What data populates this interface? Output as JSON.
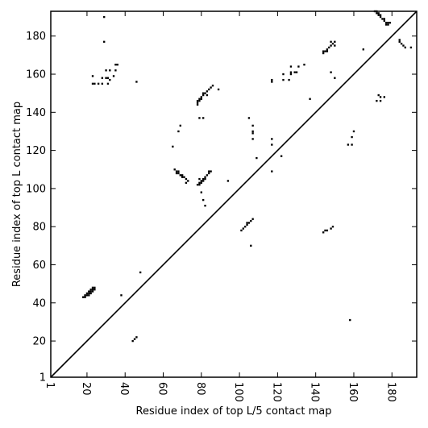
{
  "chart_data": {
    "type": "heatmap",
    "title": "",
    "xlabel": "Residue index of top L/5 contact map",
    "ylabel": "Residue index of top L contact map",
    "xlim": [
      1,
      193
    ],
    "ylim": [
      1,
      193
    ],
    "x_ticks": [
      1,
      20,
      40,
      60,
      80,
      100,
      120,
      140,
      160,
      180
    ],
    "y_ticks": [
      1,
      20,
      40,
      60,
      80,
      100,
      120,
      140,
      160,
      180
    ],
    "grid": false,
    "diagonal": true,
    "mark_color": "#000000",
    "points": [
      [
        18,
        43
      ],
      [
        19,
        43
      ],
      [
        19,
        44
      ],
      [
        20,
        44
      ],
      [
        21,
        44
      ],
      [
        21,
        45
      ],
      [
        22,
        45
      ],
      [
        22,
        46
      ],
      [
        23,
        46
      ],
      [
        23,
        47
      ],
      [
        24,
        47
      ],
      [
        24,
        48
      ],
      [
        23,
        48
      ],
      [
        22,
        47
      ],
      [
        21,
        46
      ],
      [
        20,
        45
      ],
      [
        38,
        44
      ],
      [
        44,
        20
      ],
      [
        45,
        21
      ],
      [
        46,
        22
      ],
      [
        48,
        56
      ],
      [
        23,
        155
      ],
      [
        24,
        155
      ],
      [
        26,
        155
      ],
      [
        28,
        155
      ],
      [
        31,
        155
      ],
      [
        32,
        157
      ],
      [
        34,
        159
      ],
      [
        35,
        165
      ],
      [
        36,
        165
      ],
      [
        35,
        162
      ],
      [
        32,
        162
      ],
      [
        30,
        162
      ],
      [
        23,
        159
      ],
      [
        28,
        158
      ],
      [
        30,
        158
      ],
      [
        31,
        158
      ],
      [
        29,
        177
      ],
      [
        29,
        190
      ],
      [
        46,
        156
      ],
      [
        65,
        122
      ],
      [
        68,
        130
      ],
      [
        69,
        133
      ],
      [
        66,
        110
      ],
      [
        67,
        109
      ],
      [
        68,
        108
      ],
      [
        69,
        107
      ],
      [
        70,
        106
      ],
      [
        71,
        106
      ],
      [
        72,
        105
      ],
      [
        73,
        104
      ],
      [
        70,
        107
      ],
      [
        68,
        109
      ],
      [
        67,
        108
      ],
      [
        72,
        103
      ],
      [
        78,
        102
      ],
      [
        79,
        103
      ],
      [
        80,
        104
      ],
      [
        81,
        105
      ],
      [
        82,
        106
      ],
      [
        83,
        107
      ],
      [
        84,
        108
      ],
      [
        85,
        109
      ],
      [
        79,
        102
      ],
      [
        80,
        103
      ],
      [
        81,
        104
      ],
      [
        84,
        109
      ],
      [
        82,
        105
      ],
      [
        80,
        98
      ],
      [
        81,
        94
      ],
      [
        82,
        91
      ],
      [
        79,
        105
      ],
      [
        78,
        144
      ],
      [
        78,
        145
      ],
      [
        78,
        146
      ],
      [
        79,
        147
      ],
      [
        80,
        147
      ],
      [
        80,
        148
      ],
      [
        81,
        149
      ],
      [
        82,
        150
      ],
      [
        83,
        151
      ],
      [
        84,
        152
      ],
      [
        85,
        153
      ],
      [
        86,
        154
      ],
      [
        89,
        152
      ],
      [
        79,
        146
      ],
      [
        81,
        150
      ],
      [
        83,
        149
      ],
      [
        79,
        137
      ],
      [
        81,
        137
      ],
      [
        94,
        104
      ],
      [
        101,
        78
      ],
      [
        102,
        79
      ],
      [
        103,
        80
      ],
      [
        104,
        81
      ],
      [
        105,
        82
      ],
      [
        106,
        83
      ],
      [
        107,
        84
      ],
      [
        104,
        82
      ],
      [
        106,
        70
      ],
      [
        105,
        137
      ],
      [
        107,
        133
      ],
      [
        107,
        130
      ],
      [
        107,
        129
      ],
      [
        107,
        126
      ],
      [
        109,
        116
      ],
      [
        117,
        109
      ],
      [
        117,
        123
      ],
      [
        117,
        126
      ],
      [
        117,
        156
      ],
      [
        117,
        157
      ],
      [
        122,
        117
      ],
      [
        123,
        157
      ],
      [
        123,
        160
      ],
      [
        126,
        157
      ],
      [
        127,
        160
      ],
      [
        127,
        161
      ],
      [
        127,
        164
      ],
      [
        129,
        161
      ],
      [
        130,
        161
      ],
      [
        131,
        164
      ],
      [
        134,
        165
      ],
      [
        137,
        147
      ],
      [
        144,
        77
      ],
      [
        145,
        78
      ],
      [
        146,
        78
      ],
      [
        148,
        79
      ],
      [
        149,
        80
      ],
      [
        144,
        171
      ],
      [
        145,
        172
      ],
      [
        146,
        173
      ],
      [
        147,
        174
      ],
      [
        148,
        175
      ],
      [
        149,
        176
      ],
      [
        150,
        177
      ],
      [
        148,
        177
      ],
      [
        146,
        172
      ],
      [
        144,
        172
      ],
      [
        148,
        161
      ],
      [
        150,
        158
      ],
      [
        150,
        175
      ],
      [
        157,
        123
      ],
      [
        159,
        123
      ],
      [
        159,
        127
      ],
      [
        160,
        130
      ],
      [
        158,
        31
      ],
      [
        165,
        173
      ],
      [
        171,
        193
      ],
      [
        172,
        192
      ],
      [
        173,
        191
      ],
      [
        174,
        190
      ],
      [
        175,
        189
      ],
      [
        176,
        188
      ],
      [
        177,
        187
      ],
      [
        178,
        186
      ],
      [
        172,
        193
      ],
      [
        173,
        192
      ],
      [
        174,
        191
      ],
      [
        176,
        189
      ],
      [
        178,
        187
      ],
      [
        179,
        187
      ],
      [
        177,
        186
      ],
      [
        172,
        146
      ],
      [
        173,
        149
      ],
      [
        174,
        148
      ],
      [
        174,
        146
      ],
      [
        176,
        148
      ],
      [
        184,
        177
      ],
      [
        185,
        176
      ],
      [
        186,
        175
      ],
      [
        187,
        174
      ],
      [
        184,
        178
      ],
      [
        190,
        174
      ]
    ]
  }
}
